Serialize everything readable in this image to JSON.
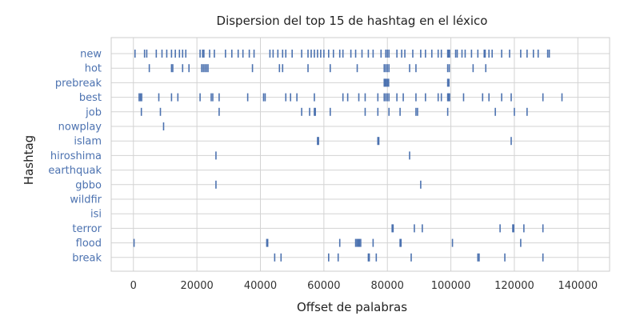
{
  "chart_data": {
    "type": "scatter",
    "title": "Dispersion del top 15 de hashtag en el léxico",
    "xlabel": "Offset de palabras",
    "ylabel": "Hashtag",
    "xlim": [
      -7000,
      150000
    ],
    "xticks": [
      0,
      20000,
      40000,
      60000,
      80000,
      100000,
      120000,
      140000
    ],
    "grid": true,
    "marker": "vertical-line",
    "colors": {
      "mark": "#4c72b0",
      "tick_label": "#4c72b0",
      "grid": "#d3d3d3",
      "frame": "#cccccc"
    },
    "categories": [
      "new",
      "hot",
      "prebreak",
      "best",
      "job",
      "nowplay",
      "islam",
      "hiroshima",
      "earthquak",
      "gbbo",
      "wildfir",
      "isi",
      "terror",
      "flood",
      "break"
    ],
    "series": [
      {
        "category": "new",
        "x": [
          500,
          3500,
          4200,
          7200,
          9000,
          10500,
          12000,
          13200,
          14500,
          15500,
          16500,
          21000,
          21800,
          22200,
          24000,
          25500,
          29000,
          31000,
          33000,
          34500,
          36500,
          38000,
          43000,
          44000,
          45500,
          47000,
          48000,
          50000,
          53000,
          55000,
          56000,
          57000,
          58000,
          59000,
          60000,
          61500,
          63000,
          65000,
          66000,
          68500,
          70000,
          72000,
          74000,
          75500,
          78000,
          79500,
          80000,
          80500,
          83000,
          84500,
          85500,
          88000,
          90500,
          92000,
          94000,
          96000,
          97000,
          99000,
          99300,
          99600,
          101500,
          102000,
          103500,
          104500,
          106500,
          108500,
          110500,
          110800,
          112000,
          113000,
          116000,
          118500,
          122000,
          124000,
          126000,
          127500,
          130500,
          131000
        ]
      },
      {
        "category": "hot",
        "x": [
          5000,
          12000,
          12400,
          15500,
          17500,
          21500,
          22000,
          22500,
          23000,
          23500,
          37500,
          46000,
          47000,
          55000,
          62000,
          70500,
          79000,
          79500,
          80000,
          80500,
          87000,
          89000,
          99000,
          99500,
          107000,
          111000
        ]
      },
      {
        "category": "prebreak",
        "x": [
          79000,
          79300,
          79600,
          80000,
          80400,
          99000,
          99400
        ]
      },
      {
        "category": "best",
        "x": [
          1800,
          2200,
          2600,
          8000,
          12000,
          14000,
          21000,
          24500,
          25000,
          27000,
          36000,
          41000,
          41500,
          48000,
          49500,
          51500,
          57000,
          66000,
          67500,
          71000,
          73000,
          77000,
          79000,
          79500,
          80000,
          80500,
          83000,
          85000,
          89000,
          92000,
          96000,
          97000,
          99000,
          99300,
          99600,
          104000,
          110000,
          112000,
          116000,
          119000,
          129000,
          135000
        ]
      },
      {
        "category": "job",
        "x": [
          2500,
          8500,
          27000,
          53000,
          55500,
          57000,
          57300,
          62000,
          73000,
          77000,
          80500,
          84000,
          89000,
          89500,
          99000,
          114000,
          120000,
          124000
        ]
      },
      {
        "category": "nowplay",
        "x": [
          9500
        ]
      },
      {
        "category": "islam",
        "x": [
          58000,
          58300,
          77000,
          77300,
          119000
        ]
      },
      {
        "category": "hiroshima",
        "x": [
          26000,
          87000
        ]
      },
      {
        "category": "earthquak",
        "x": []
      },
      {
        "category": "gbbo",
        "x": [
          26000,
          90500
        ]
      },
      {
        "category": "wildfir",
        "x": []
      },
      {
        "category": "isi",
        "x": []
      },
      {
        "category": "terror",
        "x": [
          81500,
          81800,
          88500,
          91000,
          115500,
          119500,
          119800,
          123000,
          129000
        ]
      },
      {
        "category": "flood",
        "x": [
          200,
          42000,
          42300,
          65000,
          70000,
          70400,
          70800,
          71200,
          71600,
          75500,
          84000,
          84300,
          100500,
          122000
        ]
      },
      {
        "category": "break",
        "x": [
          44500,
          46500,
          61500,
          64500,
          74000,
          74300,
          76500,
          87500,
          108500,
          108900,
          117000,
          129000
        ]
      }
    ]
  }
}
